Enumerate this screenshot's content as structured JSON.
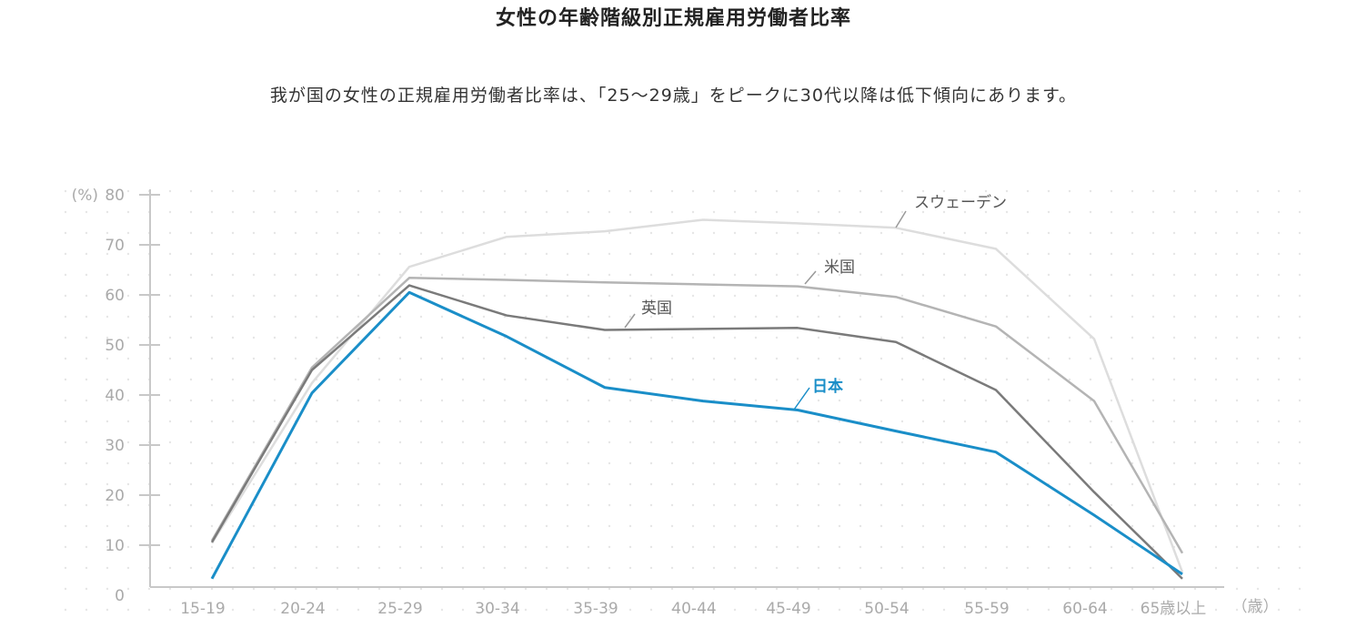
{
  "title": "女性の年齢階級別正規雇用労働者比率",
  "subtitle": "我が国の女性の正規雇用労働者比率は、「25〜29歳」をピークに30代以降は低下傾向にあります。",
  "chart_data": {
    "type": "line",
    "title": "女性の年齢階級別正規雇用労働者比率",
    "ylabel": "(%)",
    "xlabel": "（歳）",
    "ylim": [
      0,
      80
    ],
    "yticks": [
      "0",
      "10",
      "20",
      "30",
      "40",
      "50",
      "60",
      "70",
      "80"
    ],
    "categories": [
      "15-19",
      "20-24",
      "25-29",
      "30-34",
      "35-39",
      "40-44",
      "45-49",
      "50-54",
      "55-59",
      "60-64",
      "65歳以上"
    ],
    "grid": "dotted background",
    "legend": "inline labels",
    "series": [
      {
        "name": "スウェーデン",
        "color": "#dddddd",
        "values": [
          10.4,
          42.4,
          65.6,
          71.6,
          72.7,
          75.0,
          74.3,
          73.4,
          69.2,
          51.2,
          4.6
        ]
      },
      {
        "name": "米国",
        "color": "#b4b4b4",
        "values": [
          10.9,
          45.5,
          63.4,
          63.0,
          62.5,
          62.1,
          61.7,
          59.6,
          53.7,
          38.8,
          8.4
        ]
      },
      {
        "name": "英国",
        "color": "#7a7a7a",
        "values": [
          10.6,
          45.0,
          61.9,
          55.9,
          53.0,
          53.2,
          53.4,
          50.6,
          41.0,
          20.6,
          3.3
        ]
      },
      {
        "name": "日本",
        "color": "#1a8ec8",
        "values": [
          3.3,
          40.4,
          60.5,
          51.7,
          41.5,
          38.8,
          37.0,
          32.8,
          28.6,
          16.0,
          4.2
        ]
      }
    ]
  }
}
